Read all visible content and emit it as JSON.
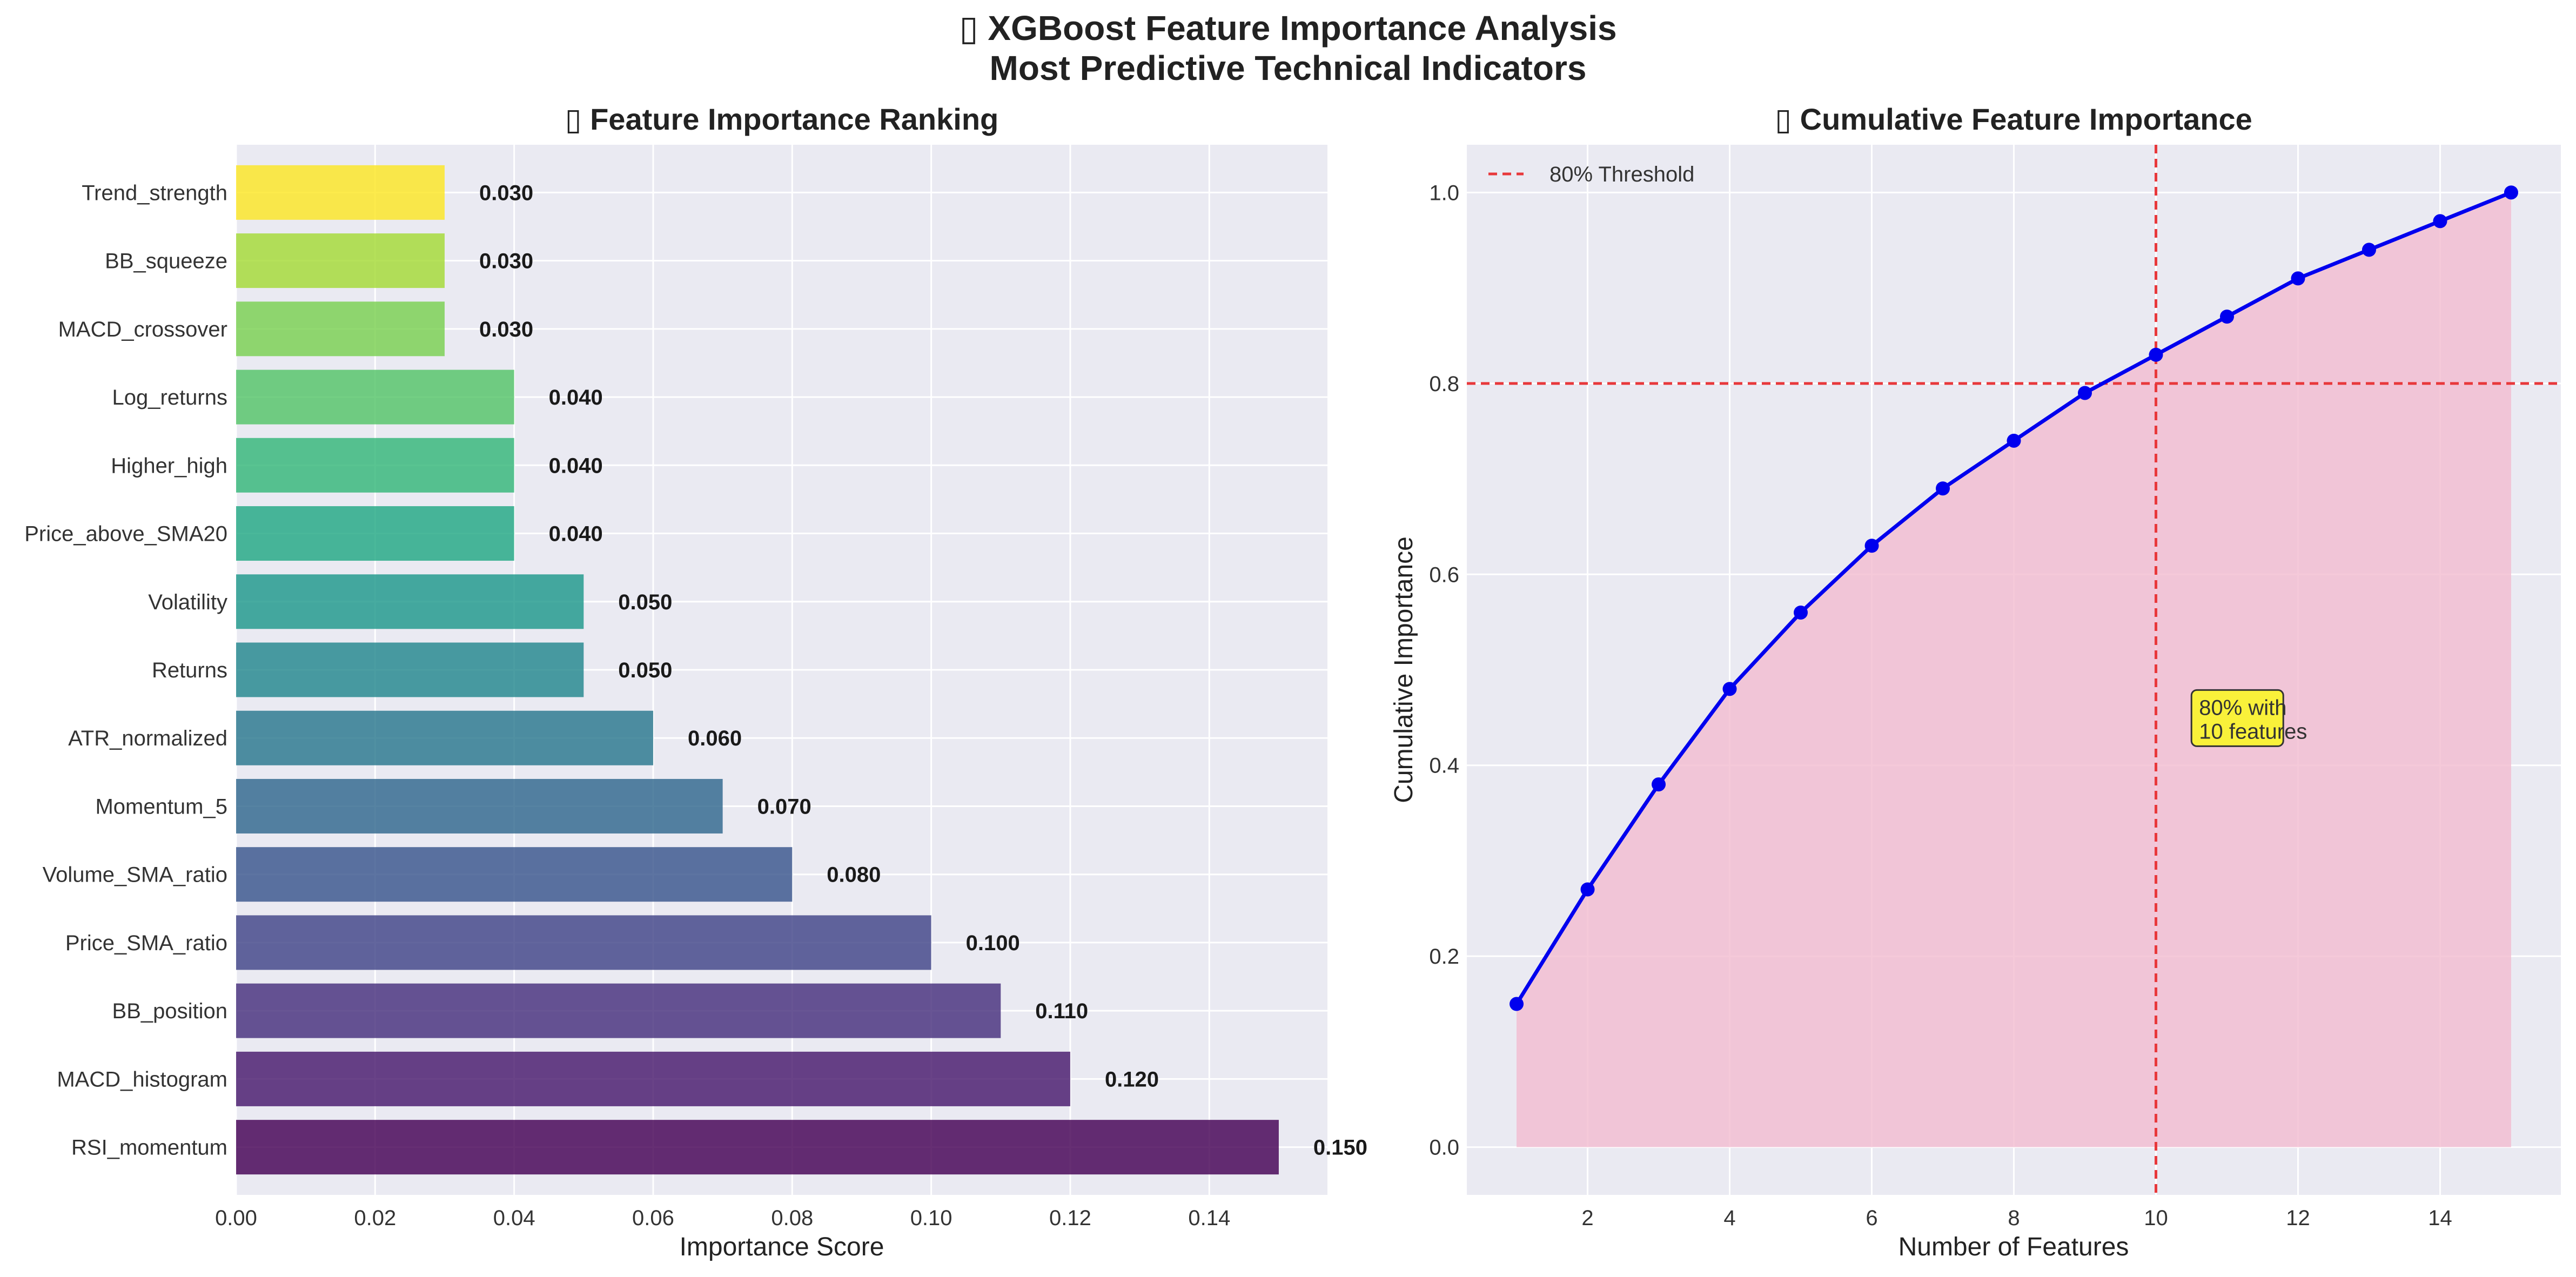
{
  "figure": {
    "title_line1": "▯ XGBoost Feature Importance Analysis",
    "title_line2": "Most Predictive Technical Indicators"
  },
  "chart_data": [
    {
      "type": "bar",
      "orientation": "horizontal",
      "title": "▯ Feature Importance Ranking",
      "xlabel": "Importance Score",
      "ylabel": "",
      "xlim": [
        0,
        0.157
      ],
      "xticks": [
        "0.00",
        "0.02",
        "0.04",
        "0.06",
        "0.08",
        "0.10",
        "0.12",
        "0.14"
      ],
      "grid": true,
      "colormap": "viridis",
      "categories": [
        "RSI_momentum",
        "MACD_histogram",
        "BB_position",
        "Price_SMA_ratio",
        "Volume_SMA_ratio",
        "Momentum_5",
        "ATR_normalized",
        "Returns",
        "Volatility",
        "Price_above_SMA20",
        "Higher_high",
        "Log_returns",
        "MACD_crossover",
        "BB_squeeze",
        "Trend_strength"
      ],
      "values": [
        0.15,
        0.12,
        0.11,
        0.1,
        0.08,
        0.07,
        0.06,
        0.05,
        0.05,
        0.04,
        0.04,
        0.04,
        0.03,
        0.03,
        0.03
      ],
      "value_labels": [
        "0.150",
        "0.120",
        "0.110",
        "0.100",
        "0.080",
        "0.070",
        "0.060",
        "0.050",
        "0.050",
        "0.040",
        "0.040",
        "0.040",
        "0.030",
        "0.030",
        "0.030"
      ],
      "colors": [
        "#440154",
        "#481a6c",
        "#472f7d",
        "#414487",
        "#39568c",
        "#31688e",
        "#2a788e",
        "#23888e",
        "#1f988b",
        "#22a884",
        "#35b779",
        "#54c568",
        "#7ad151",
        "#a5db36",
        "#fde725"
      ]
    },
    {
      "type": "line",
      "title": "▯ Cumulative Feature Importance",
      "xlabel": "Number of Features",
      "ylabel": "Cumulative Importance",
      "xlim": [
        0.3,
        15.7
      ],
      "ylim": [
        -0.05,
        1.05
      ],
      "xticks": [
        "2",
        "4",
        "6",
        "8",
        "10",
        "12",
        "14"
      ],
      "yticks": [
        "0.0",
        "0.2",
        "0.4",
        "0.6",
        "0.8",
        "1.0"
      ],
      "grid": true,
      "legend": {
        "position": "upper-left",
        "entries": [
          "80% Threshold"
        ]
      },
      "series": [
        {
          "x": [
            1,
            2,
            3,
            4,
            5,
            6,
            7,
            8,
            9,
            10,
            11,
            12,
            13,
            14,
            15
          ],
          "values": [
            0.15,
            0.27,
            0.38,
            0.48,
            0.56,
            0.63,
            0.69,
            0.74,
            0.79,
            0.83,
            0.87,
            0.91,
            0.94,
            0.97,
            1.0
          ],
          "color": "#0000ee",
          "fill": "#f2bcd0"
        }
      ],
      "threshold_y": 0.8,
      "threshold_x": 10,
      "threshold_color": "#e8383b",
      "annotation": {
        "line1": "80% with",
        "line2": "10 features",
        "x": 10.5,
        "y": 0.42
      }
    }
  ],
  "style": {
    "axes_bg": "#eaeaf2",
    "grid": "#ffffff"
  }
}
